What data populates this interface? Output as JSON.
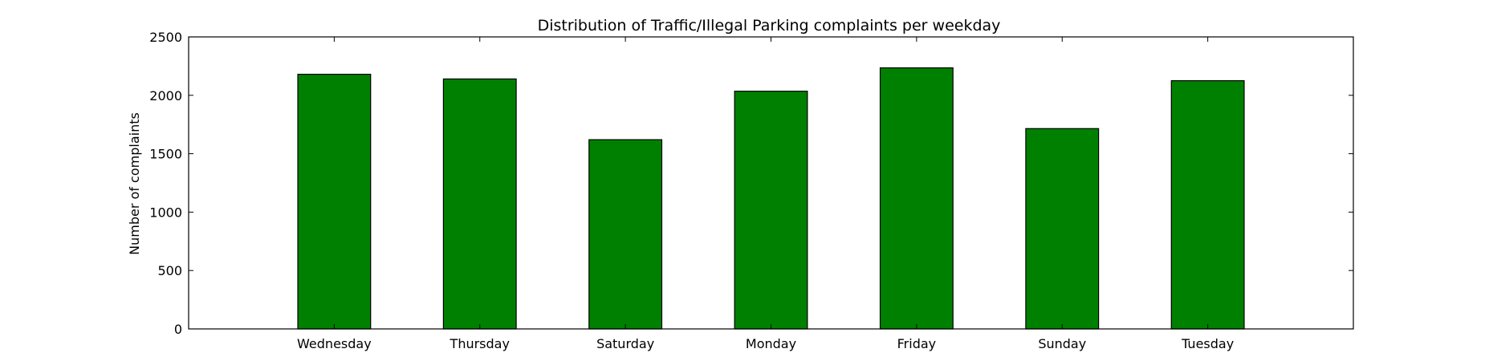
{
  "chart_data": {
    "type": "bar",
    "title": "Distribution of  Traffic/Illegal Parking complaints per weekday",
    "xlabel": "",
    "ylabel": "Number of complaints",
    "categories": [
      "Wednesday",
      "Thursday",
      "Saturday",
      "Monday",
      "Friday",
      "Sunday",
      "Tuesday"
    ],
    "values": [
      2180,
      2140,
      1620,
      2035,
      2235,
      1715,
      2125
    ],
    "ylim": [
      0,
      2500
    ],
    "yticks": [
      0,
      500,
      1000,
      1500,
      2000,
      2500
    ],
    "bar_color": "#008000",
    "edge_color": "#000000",
    "grid": false,
    "legend": "none"
  }
}
